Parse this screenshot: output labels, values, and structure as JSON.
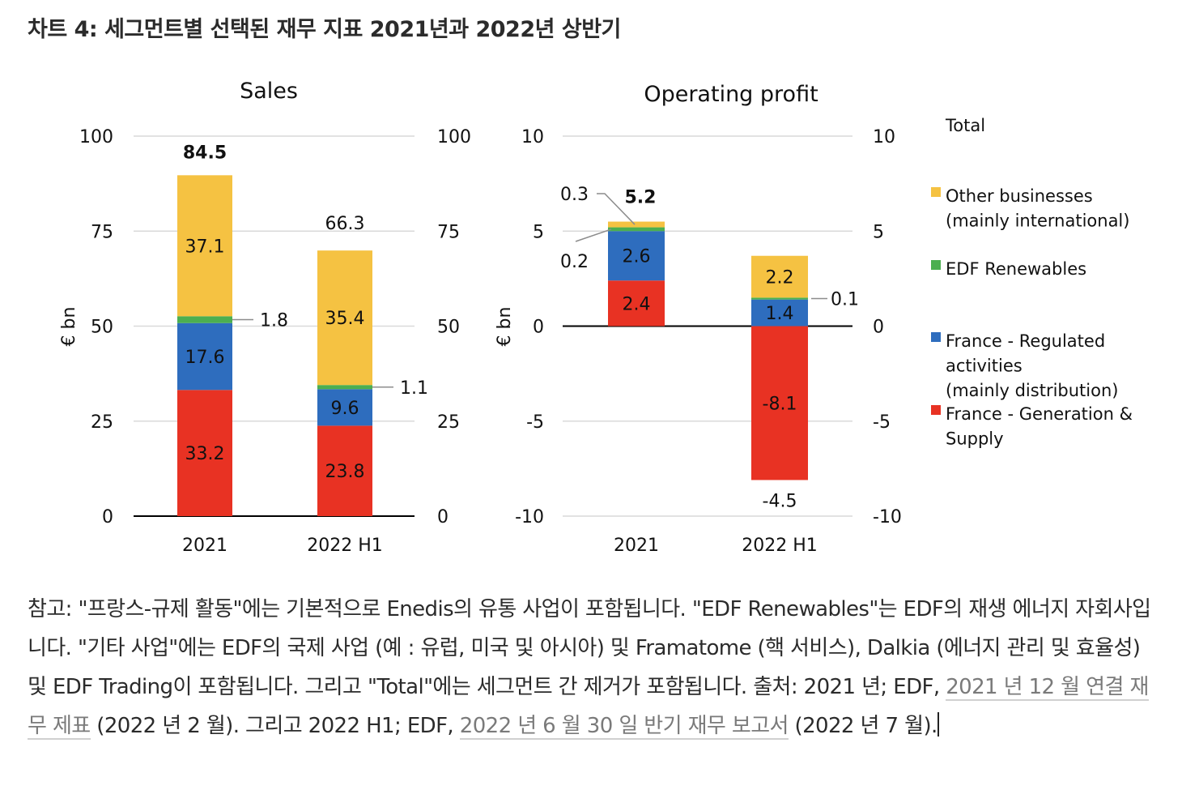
{
  "page": {
    "title": "차트 4: 세그먼트별 선택된 재무 지표 2021년과 2022년 상반기"
  },
  "colors": {
    "other_businesses": "#F5C242",
    "edf_renewables": "#4CAF50",
    "france_regulated": "#2E6DBE",
    "france_generation": "#E83223",
    "gridline": "#d9d9d9",
    "axis": "#000000"
  },
  "legend": {
    "total_label": "Total",
    "items": [
      {
        "key": "other_businesses",
        "lines": [
          "Other businesses",
          "(mainly international)"
        ]
      },
      {
        "key": "edf_renewables",
        "lines": [
          "EDF Renewables"
        ]
      },
      {
        "key": "france_regulated",
        "lines": [
          "France - Regulated",
          "activities",
          "(mainly distribution)"
        ]
      },
      {
        "key": "france_generation",
        "lines": [
          "France - Generation &",
          "Supply"
        ]
      }
    ]
  },
  "chart_data": [
    {
      "type": "bar",
      "stacked": true,
      "title": "Sales",
      "ylabel": "€ bn",
      "xlabel": "",
      "ylim": [
        0,
        100
      ],
      "yticks": [
        0,
        25,
        50,
        75,
        100
      ],
      "ytick_labels": [
        "0",
        "25",
        "50",
        "75",
        "100"
      ],
      "grid": true,
      "categories": [
        "2021",
        "2022 H1"
      ],
      "series": [
        {
          "name": "France - Generation & Supply",
          "key": "france_generation",
          "values": [
            33.2,
            23.8
          ],
          "labels": [
            "33.2",
            "23.8"
          ]
        },
        {
          "name": "France - Regulated activities (mainly distribution)",
          "key": "france_regulated",
          "values": [
            17.6,
            9.6
          ],
          "labels": [
            "17.6",
            "9.6"
          ]
        },
        {
          "name": "EDF Renewables",
          "key": "edf_renewables",
          "values": [
            1.8,
            1.1
          ],
          "labels": [
            "1.8",
            "1.1"
          ]
        },
        {
          "name": "Other businesses (mainly international)",
          "key": "other_businesses",
          "values": [
            37.1,
            35.4
          ],
          "labels": [
            "37.1",
            "35.4"
          ]
        }
      ],
      "totals": [
        84.5,
        66.3
      ],
      "total_labels": [
        "84.5",
        "66.3"
      ]
    },
    {
      "type": "bar",
      "stacked": true,
      "title": "Operating profit",
      "ylabel": "€ bn",
      "xlabel": "",
      "ylim": [
        -10,
        10
      ],
      "yticks": [
        -10,
        -5,
        0,
        5,
        10
      ],
      "ytick_labels": [
        "-10",
        "-5",
        "0",
        "5",
        "10"
      ],
      "grid": true,
      "categories": [
        "2021",
        "2022 H1"
      ],
      "series": [
        {
          "name": "France - Generation & Supply",
          "key": "france_generation",
          "values": [
            2.4,
            -8.1
          ],
          "labels": [
            "2.4",
            "-8.1"
          ]
        },
        {
          "name": "France - Regulated activities (mainly distribution)",
          "key": "france_regulated",
          "values": [
            2.6,
            1.4
          ],
          "labels": [
            "2.6",
            "1.4"
          ]
        },
        {
          "name": "EDF Renewables",
          "key": "edf_renewables",
          "values": [
            0.2,
            0.1
          ],
          "labels": [
            "0.2",
            "0.1"
          ]
        },
        {
          "name": "Other businesses (mainly international)",
          "key": "other_businesses",
          "values": [
            0.3,
            2.2
          ],
          "labels": [
            "0.3",
            "2.2"
          ]
        }
      ],
      "totals": [
        5.2,
        -4.5
      ],
      "total_labels": [
        "5.2",
        "-4.5"
      ]
    }
  ],
  "notes": {
    "text_1": "참고: \"프랑스-규제 활동\"에는 기본적으로 Enedis의 유통 사업이 포함됩니다. \"EDF Renewables\"는 EDF의 재생 에너지 자회사입니다. \"기타 사업\"에는 EDF의 국제 사업 (예 : 유럽, 미국 및 아시아) 및 Framatome (핵 서비스), Dalkia (에너지 관리 및 효율성) 및 EDF Trading이 포함됩니다. 그리고 \"Total\"에는 세그먼트 간 제거가 포함됩니다. 출처: 2021 년; EDF, ",
    "link_1": "2021 년 12 월 연결 재무 제표",
    "text_2": " (2022 년 2 월). 그리고 2022 H1; EDF, ",
    "link_2": "2022 년 6 월 30 일 반기 재무 보고서",
    "text_3": " (2022 년 7 월)."
  }
}
